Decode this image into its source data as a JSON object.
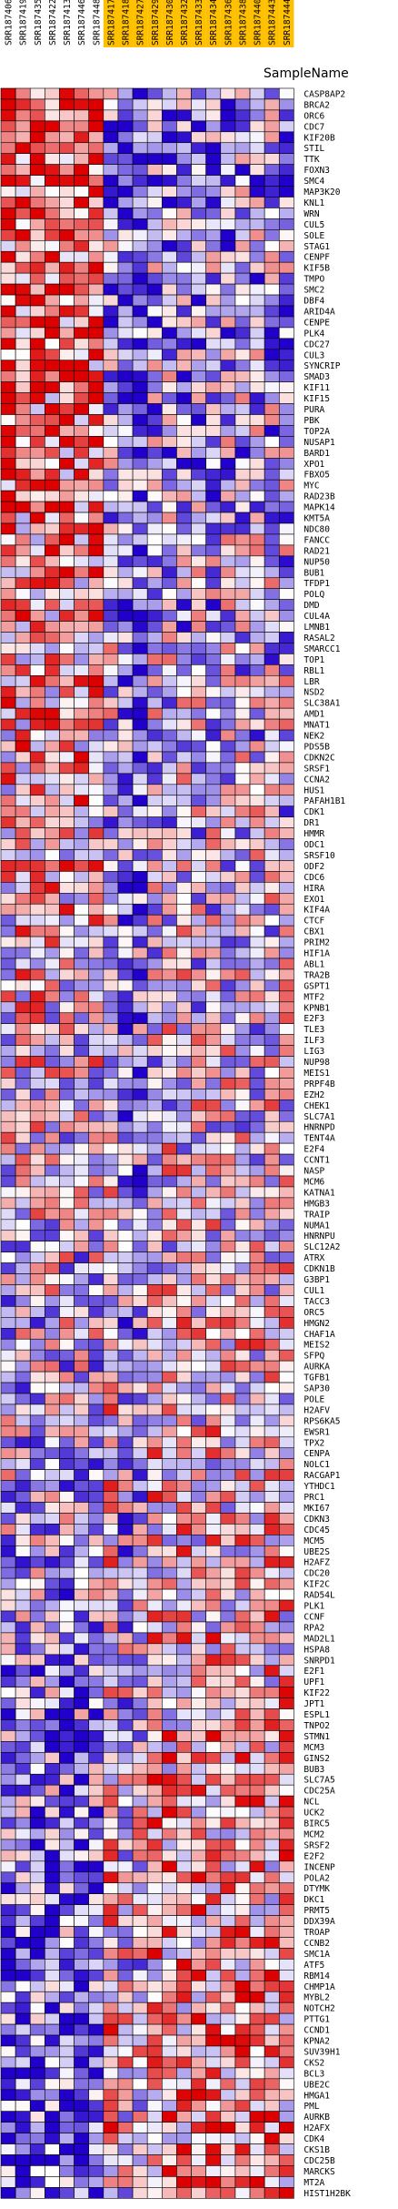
{
  "chart_data": {
    "type": "heatmap",
    "header": "SampleName",
    "samples": [
      "SRR187406",
      "SRR187419",
      "SRR187435",
      "SRR187422",
      "SRR187413",
      "SRR187446",
      "SRR187448",
      "SRR187417",
      "SRR187418",
      "SRR187427",
      "SRR187429",
      "SRR187430",
      "SRR187432",
      "SRR187433",
      "SRR187434",
      "SRR187436",
      "SRR187438",
      "SRR187440",
      "SRR187443",
      "SRR187444"
    ],
    "sample_highlight": [
      false,
      false,
      false,
      false,
      false,
      false,
      false,
      true,
      true,
      true,
      true,
      true,
      true,
      true,
      true,
      true,
      true,
      true,
      true,
      true
    ],
    "genes": [
      "CASP8AP2",
      "BRCA2",
      "ORC6",
      "CDC7",
      "KIF20B",
      "STIL",
      "TTK",
      "FOXN3",
      "SMC4",
      "MAP3K20",
      "KNL1",
      "WRN",
      "CUL5",
      "SOLE",
      "STAG1",
      "CENPF",
      "KIF5B",
      "TMPO",
      "SMC2",
      "DBF4",
      "ARID4A",
      "CENPE",
      "PLK4",
      "CDC27",
      "CUL3",
      "SYNCRIP",
      "SMAD3",
      "KIF11",
      "KIF15",
      "PURA",
      "PBK",
      "TOP2A",
      "NUSAP1",
      "BARD1",
      "XPO1",
      "FBXO5",
      "MYC",
      "RAD23B",
      "MAPK14",
      "KMT5A",
      "NDC80",
      "FANCC",
      "RAD21",
      "NUP50",
      "BUB1",
      "TFDP1",
      "POLQ",
      "DMD",
      "CUL4A",
      "LMNB1",
      "RASAL2",
      "SMARCC1",
      "TOP1",
      "RBL1",
      "LBR",
      "NSD2",
      "SLC38A1",
      "AMD1",
      "MNAT1",
      "NEK2",
      "PDS5B",
      "CDKN2C",
      "SRSF1",
      "CCNA2",
      "HUS1",
      "PAFAH1B1",
      "CDK1",
      "DR1",
      "HMMR",
      "ODC1",
      "SRSF10",
      "ODF2",
      "CDC6",
      "HIRA",
      "EXO1",
      "KIF4A",
      "CTCF",
      "CBX1",
      "PRIM2",
      "HIF1A",
      "ABL1",
      "TRA2B",
      "GSPT1",
      "MTF2",
      "KPNB1",
      "E2F3",
      "TLE3",
      "ILF3",
      "LIG3",
      "NUP98",
      "MEIS1",
      "PRPF4B",
      "EZH2",
      "CHEK1",
      "SLC7A1",
      "HNRNPD",
      "TENT4A",
      "E2F4",
      "CCNT1",
      "NASP",
      "MCM6",
      "KATNA1",
      "HMGB3",
      "TRAIP",
      "NUMA1",
      "HNRNPU",
      "SLC12A2",
      "ATRX",
      "CDKN1B",
      "G3BP1",
      "CUL1",
      "TACC3",
      "ORC5",
      "HMGN2",
      "CHAF1A",
      "MEIS2",
      "SFPQ",
      "AURKA",
      "TGFB1",
      "SAP30",
      "POLE",
      "H2AFV",
      "RPS6KA5",
      "EWSR1",
      "TPX2",
      "CENPA",
      "NOLC1",
      "RACGAP1",
      "YTHDC1",
      "PRC1",
      "MKI67",
      "CDKN3",
      "CDC45",
      "MCM5",
      "UBE2S",
      "H2AFZ",
      "CDC20",
      "KIF2C",
      "RAD54L",
      "PLK1",
      "CCNF",
      "RPA2",
      "MAD2L1",
      "HSPA8",
      "SNRPD1",
      "E2F1",
      "UPF1",
      "KIF22",
      "JPT1",
      "ESPL1",
      "TNPO2",
      "STMN1",
      "MCM3",
      "GINS2",
      "BUB3",
      "SLC7A5",
      "CDC25A",
      "NCL",
      "UCK2",
      "BIRC5",
      "MCM2",
      "SRSF2",
      "E2F2",
      "INCENP",
      "POLA2",
      "DTYMK",
      "DKC1",
      "PRMT5",
      "DDX39A",
      "TROAP",
      "CCNB2",
      "SMC1A",
      "ATF5",
      "RBM14",
      "CHMP1A",
      "MYBL2",
      "NOTCH2",
      "PTTG1",
      "CCND1",
      "KPNA2",
      "SUV39H1",
      "CKS2",
      "BCL3",
      "UBE2C",
      "HMGA1",
      "PML",
      "AURKB",
      "H2AFX",
      "CDK4",
      "CKS1B",
      "CDC25B",
      "MARCKS",
      "MT2A",
      "HIST1H2BK"
    ],
    "color_scale": {
      "low": "#2200cc",
      "mid": "#ffffff",
      "high": "#dd0000"
    }
  }
}
